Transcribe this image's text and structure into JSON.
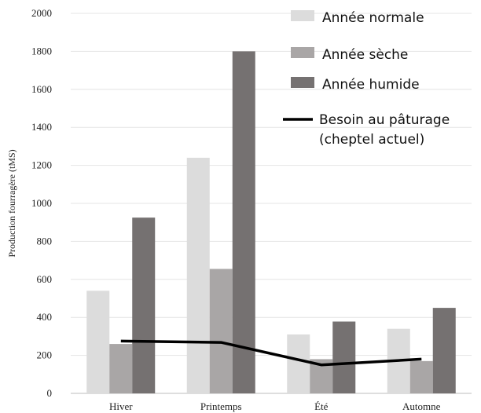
{
  "chart_data": {
    "type": "bar",
    "ylabel": "Production fourragère (tMS)",
    "xlabel": "",
    "ylim": [
      0,
      2000
    ],
    "yticks": [
      0,
      200,
      400,
      600,
      800,
      1000,
      1200,
      1400,
      1600,
      1800,
      2000
    ],
    "ytick_labels": [
      "0",
      "200",
      "400",
      "600",
      "800",
      "1000",
      "1200",
      "1400",
      "1600",
      "1800",
      "2000"
    ],
    "categories": [
      "Hiver",
      "Printemps",
      "Été",
      "Automne"
    ],
    "grid": "horizontal",
    "legend_position": "top-right",
    "series": [
      {
        "name": "Année normale",
        "kind": "bar",
        "color": "#dcdcdc",
        "values": [
          540,
          1240,
          310,
          340
        ]
      },
      {
        "name": "Année sèche",
        "kind": "bar",
        "color": "#a9a6a6",
        "values": [
          260,
          655,
          180,
          170
        ]
      },
      {
        "name": "Année humide",
        "kind": "bar",
        "color": "#757171",
        "values": [
          925,
          1800,
          378,
          450
        ]
      },
      {
        "name": "Besoin au pâturage (cheptel actuel)",
        "name_lines": [
          "Besoin au pâturage",
          "(cheptel actuel)"
        ],
        "kind": "line",
        "color": "#000000",
        "values": [
          275,
          268,
          150,
          180
        ]
      }
    ]
  }
}
